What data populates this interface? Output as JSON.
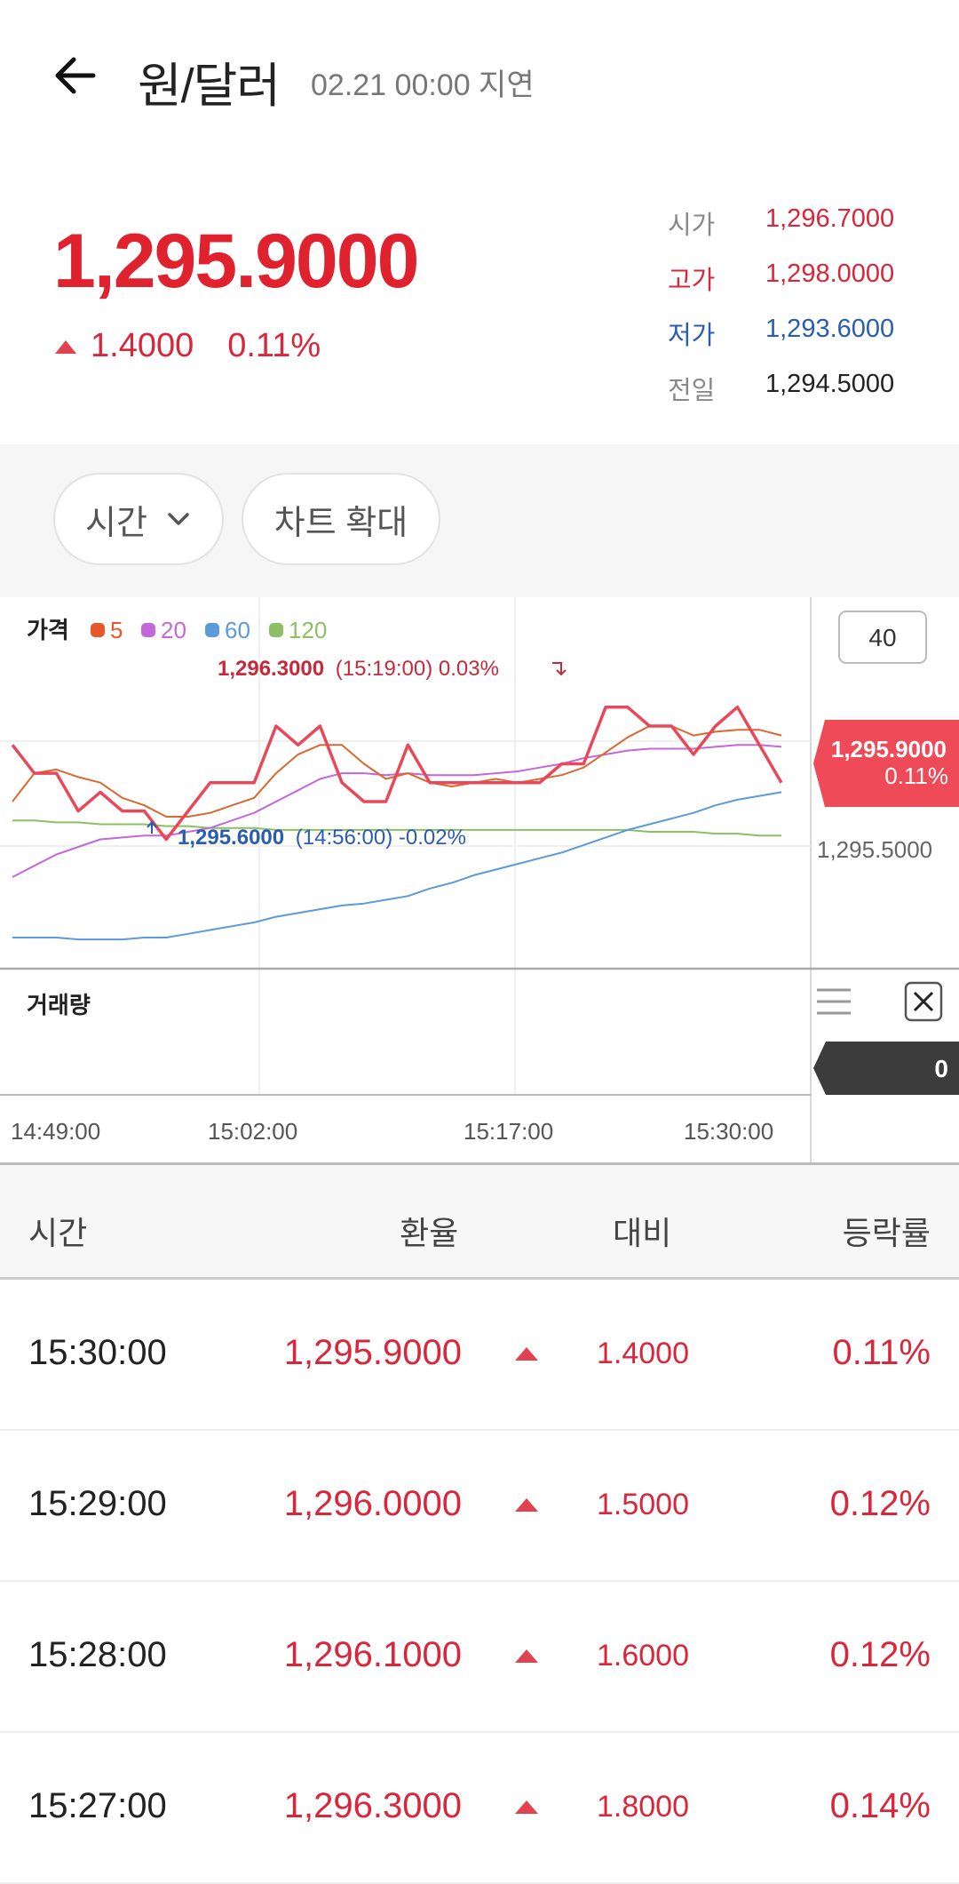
{
  "header": {
    "title": "원/달러",
    "subtitle": "02.21 00:00 지연"
  },
  "quote": {
    "price": "1,295.9000",
    "change": "1.4000",
    "change_pct": "0.11%",
    "stats": [
      {
        "label": "시가",
        "value": "1,296.7000",
        "label_color": "#888888",
        "value_color": "#d9263a"
      },
      {
        "label": "고가",
        "value": "1,298.0000",
        "label_color": "#d9263a",
        "value_color": "#d9263a"
      },
      {
        "label": "저가",
        "value": "1,293.6000",
        "label_color": "#2a5db0",
        "value_color": "#2a5db0"
      },
      {
        "label": "전일",
        "value": "1,294.5000",
        "label_color": "#888888",
        "value_color": "#222222"
      }
    ]
  },
  "toolbar": {
    "period_label": "시간",
    "expand_label": "차트 확대"
  },
  "chart_data": {
    "type": "line",
    "legend": [
      {
        "label": "가격",
        "color": "#222222"
      },
      {
        "label": "5",
        "color": "#e8572a"
      },
      {
        "label": "20",
        "color": "#c468d8"
      },
      {
        "label": "60",
        "color": "#5b9bd9"
      },
      {
        "label": "120",
        "color": "#8cc063"
      }
    ],
    "count_box": "40",
    "current_label_price": "1,295.9000",
    "current_label_pct": "0.11%",
    "axis_price_label": "1,295.5000",
    "max_annotation": "1,296.3000 (15:19:00) 0.03%",
    "max_annotation_price": "1,296.3000",
    "max_annotation_rest": "(15:19:00) 0.03%",
    "min_annotation_price": "1,295.6000",
    "min_annotation_rest": "(14:56:00) -0.02%",
    "volume_label": "거래량",
    "volume_value": "0",
    "x_ticks": [
      "14:49:00",
      "15:02:00",
      "15:17:00",
      "15:30:00"
    ],
    "colors": {
      "price": "#e8485a",
      "ma5": "#d9692e",
      "ma20": "#c468d8",
      "ma60": "#5b9bd9",
      "ma120": "#8cc063"
    },
    "series": [
      {
        "name": "가격",
        "values": [
          1296.1,
          1295.95,
          1295.95,
          1295.75,
          1295.85,
          1295.75,
          1295.75,
          1295.6,
          1295.75,
          1295.9,
          1295.9,
          1295.9,
          1296.2,
          1296.1,
          1296.2,
          1295.9,
          1295.8,
          1295.8,
          1296.1,
          1295.9,
          1295.9,
          1295.9,
          1295.9,
          1295.9,
          1295.9,
          1296.0,
          1296.0,
          1296.3,
          1296.3,
          1296.2,
          1296.2,
          1296.05,
          1296.2,
          1296.3,
          1296.1,
          1295.9
        ]
      },
      {
        "name": "5",
        "values": [
          1295.8,
          1295.95,
          1295.97,
          1295.93,
          1295.9,
          1295.82,
          1295.78,
          1295.72,
          1295.72,
          1295.74,
          1295.78,
          1295.82,
          1295.95,
          1296.05,
          1296.1,
          1296.1,
          1296.0,
          1295.92,
          1295.95,
          1295.9,
          1295.88,
          1295.9,
          1295.92,
          1295.9,
          1295.92,
          1295.94,
          1295.98,
          1296.06,
          1296.14,
          1296.2,
          1296.2,
          1296.15,
          1296.17,
          1296.18,
          1296.18,
          1296.15
        ]
      },
      {
        "name": "20",
        "values": [
          1295.4,
          1295.46,
          1295.52,
          1295.56,
          1295.6,
          1295.61,
          1295.62,
          1295.62,
          1295.64,
          1295.66,
          1295.7,
          1295.74,
          1295.8,
          1295.86,
          1295.92,
          1295.95,
          1295.95,
          1295.94,
          1295.95,
          1295.94,
          1295.94,
          1295.94,
          1295.95,
          1295.96,
          1295.98,
          1296.0,
          1296.03,
          1296.05,
          1296.07,
          1296.08,
          1296.08,
          1296.08,
          1296.09,
          1296.1,
          1296.1,
          1296.09
        ]
      },
      {
        "name": "60",
        "values": [
          1295.08,
          1295.08,
          1295.08,
          1295.07,
          1295.07,
          1295.07,
          1295.08,
          1295.08,
          1295.1,
          1295.12,
          1295.14,
          1295.16,
          1295.19,
          1295.21,
          1295.23,
          1295.25,
          1295.26,
          1295.28,
          1295.3,
          1295.34,
          1295.37,
          1295.41,
          1295.44,
          1295.47,
          1295.5,
          1295.53,
          1295.57,
          1295.61,
          1295.65,
          1295.68,
          1295.71,
          1295.74,
          1295.78,
          1295.81,
          1295.83,
          1295.85
        ]
      },
      {
        "name": "120",
        "values": [
          1295.7,
          1295.7,
          1295.69,
          1295.69,
          1295.68,
          1295.68,
          1295.68,
          1295.67,
          1295.67,
          1295.66,
          1295.66,
          1295.66,
          1295.65,
          1295.65,
          1295.65,
          1295.65,
          1295.65,
          1295.65,
          1295.65,
          1295.65,
          1295.65,
          1295.65,
          1295.65,
          1295.65,
          1295.65,
          1295.65,
          1295.65,
          1295.65,
          1295.65,
          1295.64,
          1295.64,
          1295.64,
          1295.63,
          1295.63,
          1295.62,
          1295.62
        ]
      }
    ],
    "y_range": [
      1295.0,
      1296.6
    ]
  },
  "table": {
    "headers": [
      "시간",
      "환율",
      "대비",
      "등락률"
    ],
    "rows": [
      {
        "time": "15:30:00",
        "rate": "1,295.9000",
        "change": "1.4000",
        "pct": "0.11%"
      },
      {
        "time": "15:29:00",
        "rate": "1,296.0000",
        "change": "1.5000",
        "pct": "0.12%"
      },
      {
        "time": "15:28:00",
        "rate": "1,296.1000",
        "change": "1.6000",
        "pct": "0.12%"
      },
      {
        "time": "15:27:00",
        "rate": "1,296.3000",
        "change": "1.8000",
        "pct": "0.14%"
      }
    ]
  }
}
